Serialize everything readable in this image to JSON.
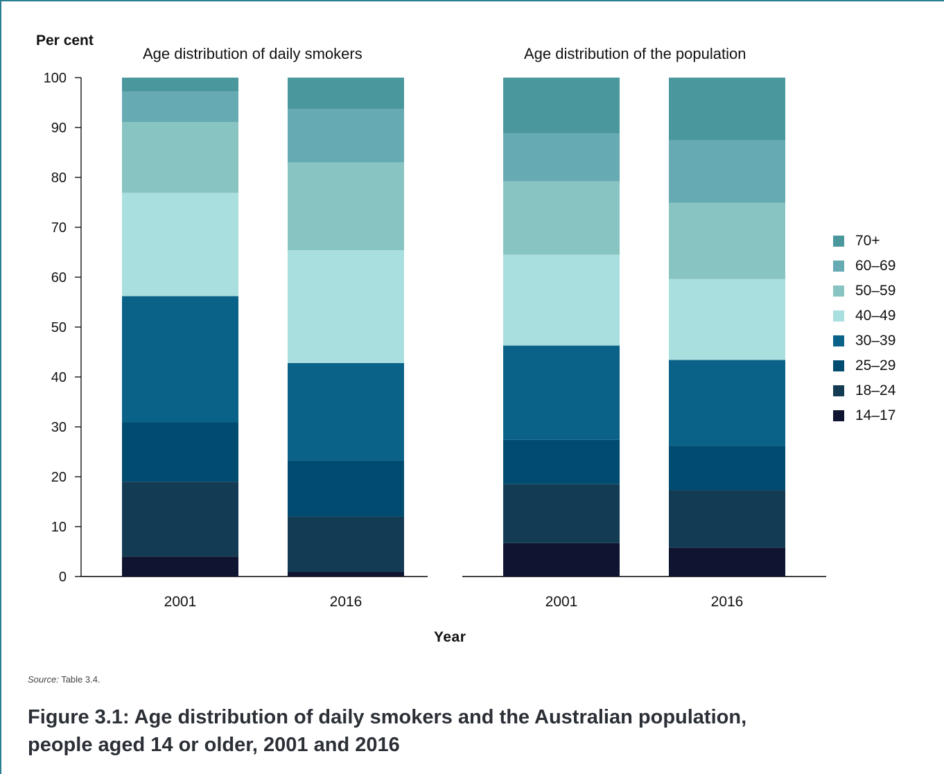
{
  "chart_data": {
    "type": "bar",
    "stacked": true,
    "ylabel": "Per cent",
    "xlabel": "Year",
    "ylim": [
      0,
      100
    ],
    "yticks": [
      0,
      10,
      20,
      30,
      40,
      50,
      60,
      70,
      80,
      90,
      100
    ],
    "legend_position": "right",
    "age_groups": [
      "14–17",
      "18–24",
      "25–29",
      "30–39",
      "40–49",
      "50–59",
      "60–69",
      "70+"
    ],
    "colors": {
      "14–17": "#0f1430",
      "18–24": "#133b54",
      "25–29": "#004b70",
      "30–39": "#0b6289",
      "40–49": "#aadfdf",
      "50–59": "#88c5c2",
      "60–69": "#66aab3",
      "70+": "#4a989d"
    },
    "panels": [
      {
        "title": "Age distribution of daily smokers",
        "categories": [
          "2001",
          "2016"
        ],
        "series": [
          {
            "name": "14–17",
            "values": [
              4.0,
              0.9
            ]
          },
          {
            "name": "18–24",
            "values": [
              15.0,
              11.1
            ]
          },
          {
            "name": "25–29",
            "values": [
              11.9,
              11.2
            ]
          },
          {
            "name": "30–39",
            "values": [
              25.3,
              19.6
            ]
          },
          {
            "name": "40–49",
            "values": [
              20.7,
              22.6
            ]
          },
          {
            "name": "50–59",
            "values": [
              14.2,
              17.6
            ]
          },
          {
            "name": "60–69",
            "values": [
              6.1,
              10.7
            ]
          },
          {
            "name": "70+",
            "values": [
              2.8,
              6.3
            ]
          }
        ]
      },
      {
        "title": "Age distribution of the population",
        "categories": [
          "2001",
          "2016"
        ],
        "series": [
          {
            "name": "14–17",
            "values": [
              6.7,
              5.8
            ]
          },
          {
            "name": "18–24",
            "values": [
              11.8,
              11.5
            ]
          },
          {
            "name": "25–29",
            "values": [
              8.9,
              8.9
            ]
          },
          {
            "name": "30–39",
            "values": [
              18.9,
              17.2
            ]
          },
          {
            "name": "40–49",
            "values": [
              18.2,
              16.2
            ]
          },
          {
            "name": "50–59",
            "values": [
              14.7,
              15.3
            ]
          },
          {
            "name": "60–69",
            "values": [
              9.6,
              12.6
            ]
          },
          {
            "name": "70+",
            "values": [
              11.2,
              12.5
            ]
          }
        ]
      }
    ]
  },
  "legend_items": [
    {
      "label": "70+",
      "color": "#4a989d"
    },
    {
      "label": "60–69",
      "color": "#66aab3"
    },
    {
      "label": "50–59",
      "color": "#88c5c2"
    },
    {
      "label": "40–49",
      "color": "#aadfdf"
    },
    {
      "label": "30–39",
      "color": "#0b6289"
    },
    {
      "label": "25–29",
      "color": "#004b70"
    },
    {
      "label": "18–24",
      "color": "#133b54"
    },
    {
      "label": "14–17",
      "color": "#0f1430"
    }
  ],
  "source": {
    "prefix": "Source:",
    "text": "Table 3.4."
  },
  "caption": "Figure 3.1: Age distribution of daily smokers and the Australian population, people aged 14 or older, 2001 and 2016"
}
